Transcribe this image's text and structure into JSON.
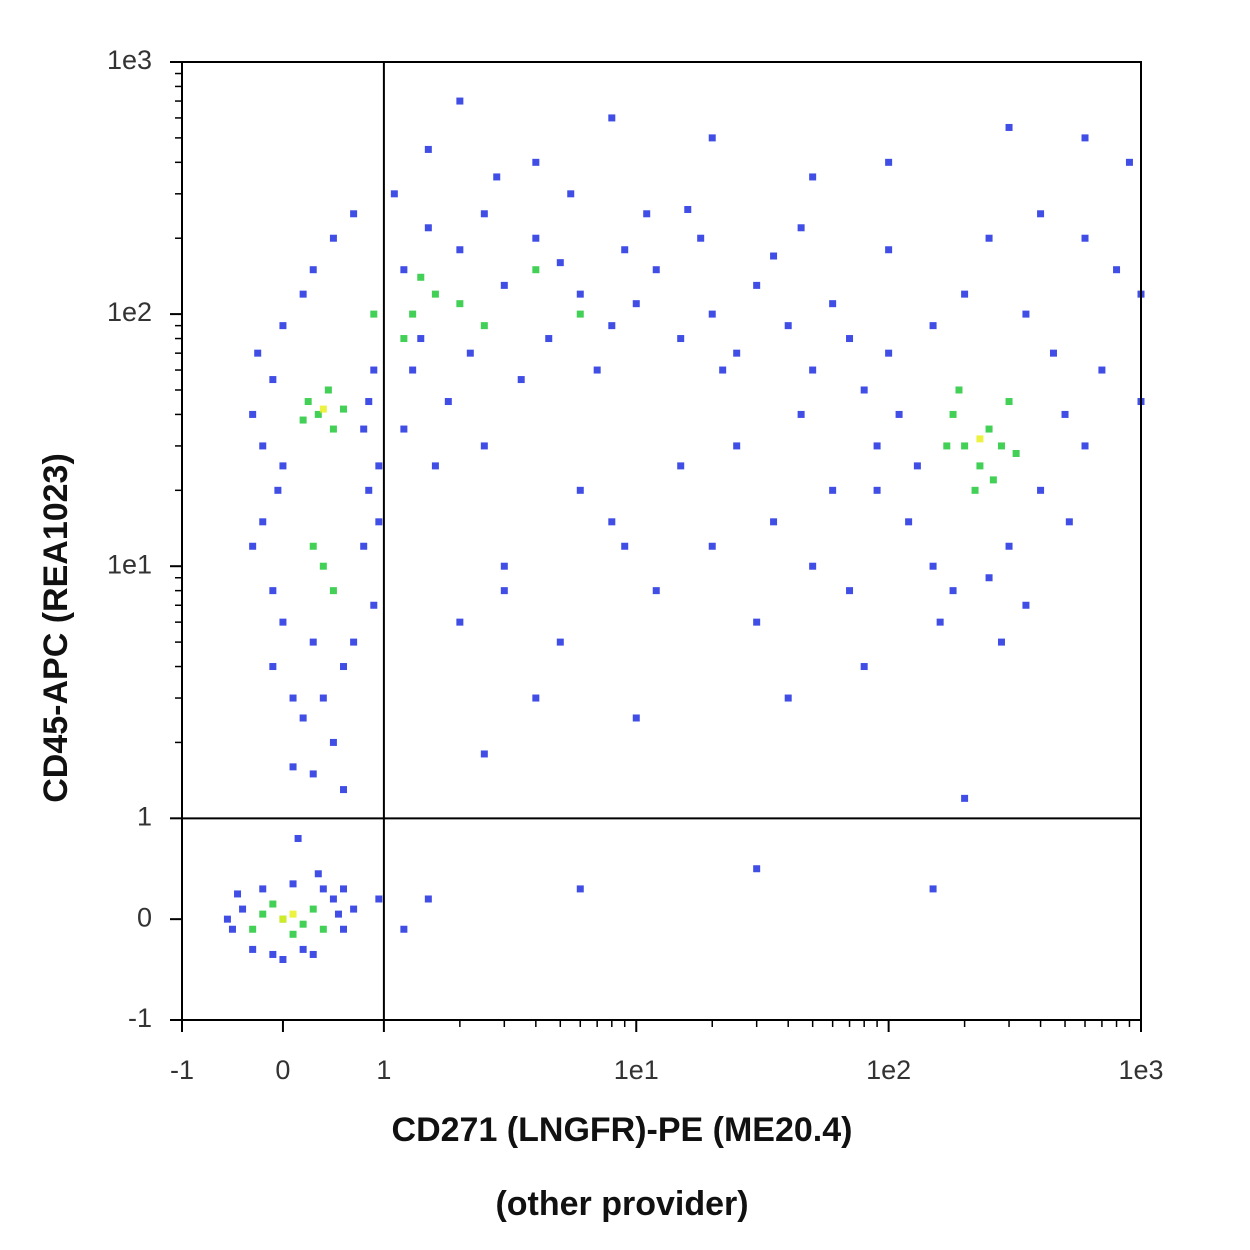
{
  "chart_data": {
    "type": "scatter",
    "xlabel": "CD271 (LNGFR)-PE (ME20.4)",
    "xlabel2": "(other provider)",
    "ylabel": "CD45-APC (REA1023)",
    "xlim": [
      -1,
      1000
    ],
    "ylim": [
      -1,
      1000
    ],
    "xticks": [
      -1,
      0,
      1,
      {
        "value": 10,
        "label": "1e1"
      },
      {
        "value": 100,
        "label": "1e2"
      },
      {
        "value": 1000,
        "label": "1e3"
      }
    ],
    "yticks": [
      -1,
      0,
      1,
      {
        "value": 10,
        "label": "1e1"
      },
      {
        "value": 100,
        "label": "1e2"
      },
      {
        "value": 1000,
        "label": "1e3"
      }
    ],
    "xminorticks": [
      2,
      3,
      4,
      5,
      6,
      7,
      8,
      9,
      20,
      30,
      40,
      50,
      60,
      70,
      80,
      90,
      200,
      300,
      400,
      500,
      600,
      700,
      800,
      900
    ],
    "yminorticks": [
      2,
      3,
      4,
      5,
      6,
      7,
      8,
      9,
      20,
      30,
      40,
      50,
      60,
      70,
      80,
      90,
      200,
      300,
      400,
      500,
      600,
      700,
      800,
      900
    ],
    "gates": {
      "x": 1,
      "y": 1
    },
    "series": [
      {
        "color": "#1f2fe0",
        "x": [
          -0.4,
          -0.5,
          0.5,
          0.6,
          -0.3,
          0.3,
          0.1,
          -0.2,
          0.4,
          0.55,
          -0.55,
          0,
          0.2,
          -0.1,
          0.7,
          0.6,
          -0.45,
          0.35,
          0.15,
          0.3,
          0.95,
          -0.3,
          -0.2,
          -0.1,
          0,
          0.8,
          0.9,
          0.85,
          -0.2,
          -0.1,
          0,
          0.8,
          0.9,
          0.7,
          -0.1,
          0.1,
          0.2,
          0.5,
          0.1,
          0.6,
          -0.25,
          0,
          0.3,
          0.5,
          0.7,
          0.2,
          -0.05,
          0.95,
          0.95,
          0.3,
          0.6,
          0.4,
          -0.3,
          0.85,
          1.2,
          1.5,
          2,
          2.5,
          3,
          4,
          5,
          6,
          8,
          10,
          12,
          15,
          20,
          25,
          30,
          40,
          50,
          60,
          70,
          1.3,
          1.8,
          2.2,
          3.5,
          4.5,
          7,
          9,
          11,
          18,
          22,
          35,
          45,
          1.1,
          2.8,
          5.5,
          16,
          1.2,
          1.6,
          2.5,
          1.4,
          80,
          90,
          100,
          120,
          150,
          180,
          250,
          300,
          400,
          500,
          600,
          450,
          350,
          200,
          150,
          110,
          130,
          700,
          800,
          600,
          400,
          250,
          100,
          90,
          520,
          160,
          280,
          350,
          1000,
          1000,
          3,
          5,
          8,
          12,
          20,
          30,
          50,
          4,
          10,
          40,
          2,
          6,
          15,
          25,
          60,
          70,
          80,
          2.5,
          6,
          30,
          150,
          200,
          1.5,
          1.2,
          3,
          9,
          45,
          35,
          2,
          8,
          20,
          100,
          300,
          600,
          900,
          1.5,
          4,
          50
        ],
        "y": [
          0.1,
          -0.1,
          0.2,
          -0.1,
          -0.3,
          -0.35,
          0.35,
          0.3,
          0.3,
          0.05,
          0,
          -0.4,
          -0.3,
          -0.35,
          0.1,
          0.3,
          0.25,
          0.45,
          0.8,
          1.5,
          0.2,
          40,
          30,
          55,
          25,
          35,
          60,
          20,
          15,
          8,
          6,
          12,
          7,
          5,
          4,
          3,
          2.5,
          2,
          1.6,
          1.3,
          70,
          90,
          150,
          200,
          250,
          120,
          20,
          15,
          25,
          5,
          4,
          3,
          12,
          45,
          150,
          220,
          180,
          250,
          130,
          200,
          160,
          120,
          90,
          110,
          150,
          80,
          100,
          70,
          130,
          90,
          60,
          110,
          80,
          60,
          45,
          70,
          55,
          80,
          60,
          180,
          250,
          200,
          60,
          170,
          220,
          300,
          350,
          300,
          260,
          35,
          25,
          30,
          80,
          50,
          20,
          70,
          15,
          10,
          8,
          9,
          12,
          20,
          40,
          30,
          70,
          100,
          120,
          90,
          40,
          25,
          60,
          150,
          200,
          250,
          200,
          180,
          30,
          15,
          6,
          5,
          7,
          45,
          120,
          10,
          5,
          15,
          8,
          12,
          6,
          10,
          3,
          2.5,
          3,
          6,
          20,
          25,
          30,
          20,
          8,
          4,
          1.8,
          0.3,
          0.5,
          0.3,
          1.2,
          0.2,
          -0.1,
          8,
          12,
          40,
          15,
          700,
          600,
          500,
          400,
          550,
          500,
          400,
          450,
          400,
          350
        ]
      },
      {
        "color": "#22c83a",
        "x": [
          0,
          -0.2,
          0.2,
          0.3,
          -0.3,
          0.1,
          -0.1,
          0.4,
          0.35,
          0.25,
          0.5,
          0.45,
          0.2,
          0.6,
          0.4,
          0.3,
          0.5,
          1.3,
          1.6,
          1.2,
          2,
          1.4,
          0.9,
          2.5,
          4,
          6,
          200,
          250,
          230,
          180,
          280,
          300,
          220,
          260,
          170,
          320,
          190
        ],
        "y": [
          0,
          0.05,
          -0.05,
          0.1,
          -0.1,
          -0.15,
          0.15,
          -0.1,
          40,
          45,
          35,
          50,
          38,
          42,
          10,
          12,
          8,
          100,
          120,
          80,
          110,
          140,
          100,
          90,
          150,
          100,
          30,
          35,
          25,
          40,
          30,
          45,
          20,
          22,
          30,
          28,
          50
        ]
      },
      {
        "color": "#e8f020",
        "x": [
          0,
          0.1,
          230,
          0.4
        ],
        "y": [
          0,
          0.05,
          32,
          42
        ]
      }
    ]
  }
}
